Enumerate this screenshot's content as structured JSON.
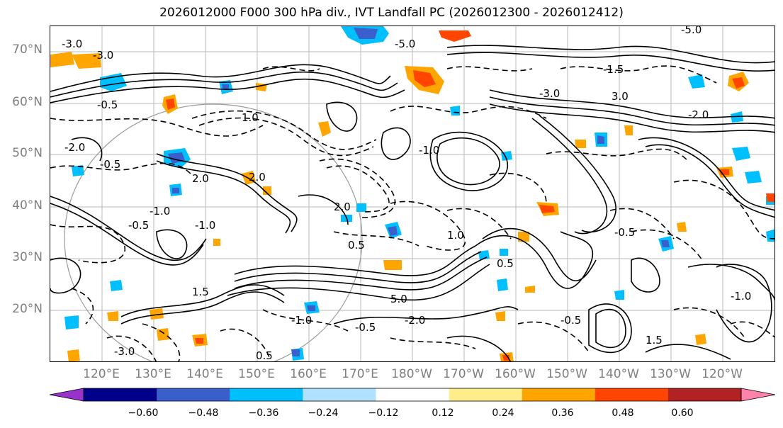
{
  "title": "2026012000 F000 300 hPa div., IVT Landfall PC (2026012300 - 2026012412)",
  "map": {
    "lat_labels": [
      "70°N",
      "60°N",
      "50°N",
      "40°N",
      "30°N",
      "20°N"
    ],
    "lon_labels": [
      "120°E",
      "130°E",
      "140°E",
      "150°E",
      "160°E",
      "170°E",
      "180°W",
      "170°W",
      "160°W",
      "150°W",
      "140°W",
      "130°W",
      "120°W"
    ],
    "contour_labels": [
      "-0.5",
      "-1.0",
      "-1.5",
      "-2.0",
      "-3.0",
      "-5.0",
      "0.5",
      "1.0",
      "1.5",
      "2.0",
      "3.0",
      "5.0"
    ]
  },
  "colorbar": {
    "ticks": [
      "−0.60",
      "−0.48",
      "−0.36",
      "−0.24",
      "−0.12",
      "0.12",
      "0.24",
      "0.36",
      "0.48",
      "0.60"
    ],
    "colors": [
      "#9932cc",
      "#00008b",
      "#3a5fcd",
      "#00bfff",
      "#b0e2ff",
      "#ffffff",
      "#ffec8b",
      "#ffa500",
      "#ff4500",
      "#b22222",
      "#ff82ab"
    ]
  }
}
